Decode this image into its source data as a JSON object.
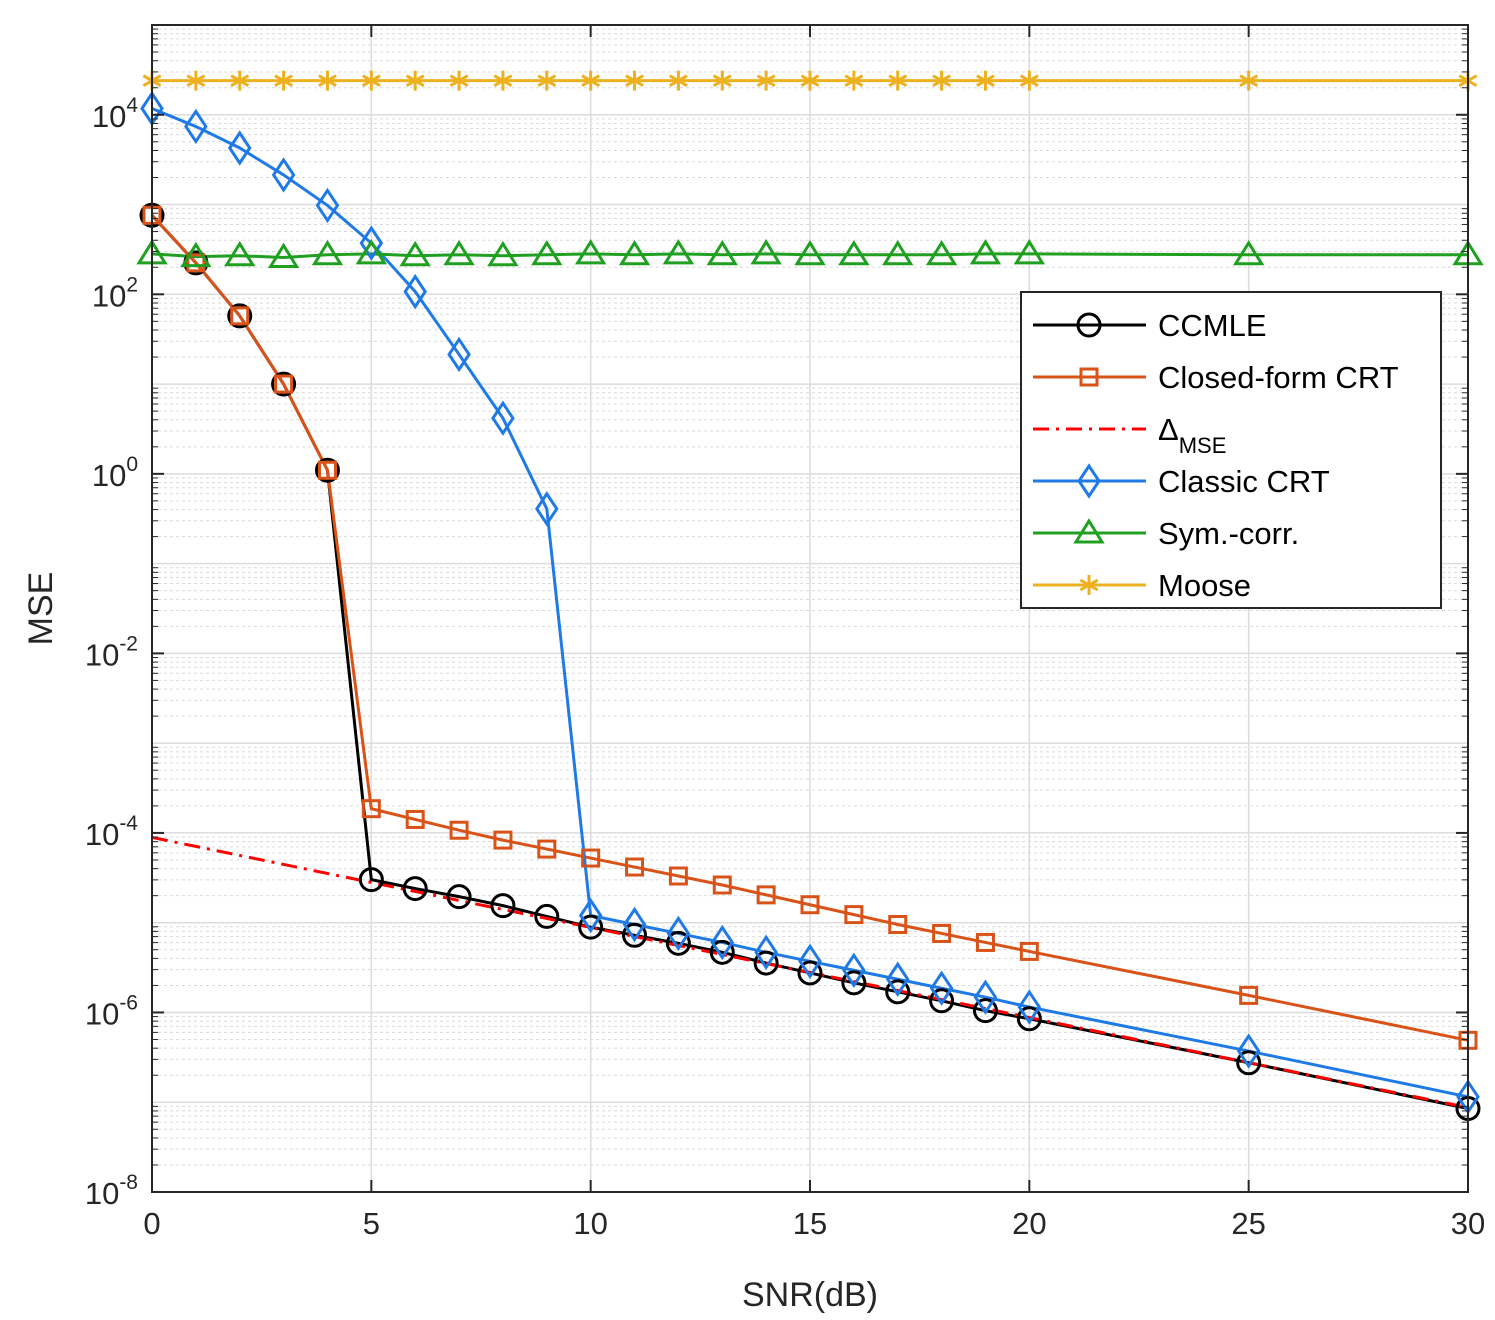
{
  "chart_data": {
    "type": "line",
    "xlabel": "SNR(dB)",
    "ylabel": "MSE",
    "xlim": [
      0,
      30
    ],
    "ylim_log10": [
      -8,
      5
    ],
    "yscale": "log",
    "grid": true,
    "legend_position": "right-upper",
    "xticks": [
      0,
      5,
      10,
      15,
      20,
      25,
      30
    ],
    "yticks": [
      {
        "base": "10",
        "exp": "-8",
        "log": -8
      },
      {
        "base": "10",
        "exp": "-6",
        "log": -6
      },
      {
        "base": "10",
        "exp": "-4",
        "log": -4
      },
      {
        "base": "10",
        "exp": "-2",
        "log": -2
      },
      {
        "base": "10",
        "exp": "0",
        "log": 0
      },
      {
        "base": "10",
        "exp": "2",
        "log": 2
      },
      {
        "base": "10",
        "exp": "4",
        "log": 4
      }
    ],
    "x": [
      0,
      1,
      2,
      3,
      4,
      5,
      6,
      7,
      8,
      9,
      10,
      11,
      12,
      13,
      14,
      15,
      16,
      17,
      18,
      19,
      20,
      25,
      30
    ],
    "series": [
      {
        "name": "CCMLE",
        "color": "#000000",
        "marker": "circle",
        "dash": "solid",
        "log10_values": [
          2.88,
          2.35,
          1.76,
          1.0,
          0.04,
          -4.52,
          -4.62,
          -4.71,
          -4.81,
          -4.93,
          -5.05,
          -5.14,
          -5.23,
          -5.33,
          -5.45,
          -5.56,
          -5.67,
          -5.77,
          -5.87,
          -5.98,
          -6.07,
          -6.56,
          -7.07
        ]
      },
      {
        "name": "Closed-form CRT",
        "color": "#d95319",
        "marker": "square",
        "dash": "solid",
        "log10_values": [
          2.88,
          2.35,
          1.76,
          1.0,
          0.04,
          -3.73,
          -3.85,
          -3.97,
          -4.08,
          -4.18,
          -4.28,
          -4.38,
          -4.48,
          -4.58,
          -4.69,
          -4.8,
          -4.91,
          -5.02,
          -5.12,
          -5.22,
          -5.32,
          -5.81,
          -6.31
        ]
      },
      {
        "name": "Δ_MSE",
        "label_main": "Δ",
        "label_sub": "MSE",
        "color": "#ff0000",
        "marker": "none",
        "dash": "dashdot",
        "x_line": [
          0,
          30
        ],
        "log10_line": [
          -4.05,
          -7.06
        ]
      },
      {
        "name": "Classic CRT",
        "color": "#1f7ae6",
        "marker": "diamond",
        "dash": "solid",
        "log10_values": [
          4.07,
          3.87,
          3.63,
          3.33,
          2.99,
          2.57,
          2.03,
          1.33,
          0.62,
          -0.39,
          -4.92,
          -5.02,
          -5.12,
          -5.22,
          -5.33,
          -5.43,
          -5.53,
          -5.63,
          -5.73,
          -5.83,
          -5.94,
          -6.43,
          -6.94
        ]
      },
      {
        "name": "Sym.-corr.",
        "color": "#20a020",
        "marker": "triangle",
        "dash": "solid",
        "log10_values": [
          2.45,
          2.42,
          2.43,
          2.41,
          2.44,
          2.45,
          2.43,
          2.44,
          2.43,
          2.44,
          2.45,
          2.44,
          2.45,
          2.44,
          2.45,
          2.44,
          2.44,
          2.44,
          2.44,
          2.45,
          2.45,
          2.44,
          2.44
        ]
      },
      {
        "name": "Moose",
        "color": "#edb120",
        "marker": "asterisk",
        "dash": "solid",
        "log10_values": [
          4.38,
          4.38,
          4.38,
          4.38,
          4.38,
          4.38,
          4.38,
          4.38,
          4.38,
          4.38,
          4.38,
          4.38,
          4.38,
          4.38,
          4.38,
          4.38,
          4.38,
          4.38,
          4.38,
          4.38,
          4.38,
          4.38,
          4.38
        ]
      }
    ]
  }
}
